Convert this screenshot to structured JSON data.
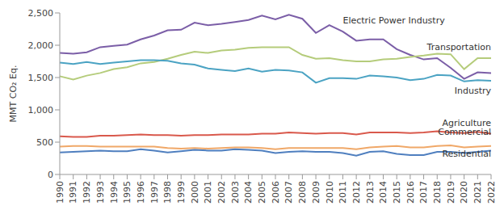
{
  "chart_data": {
    "type": "line",
    "y_label": "MMT CO₂ Eq.",
    "categories": [
      "1990",
      "1991",
      "1992",
      "1993",
      "1994",
      "1995",
      "1996",
      "1997",
      "1998",
      "1999",
      "2000",
      "2001",
      "2002",
      "2003",
      "2004",
      "2005",
      "2006",
      "2007",
      "2008",
      "2009",
      "2010",
      "2011",
      "2012",
      "2013",
      "2014",
      "2015",
      "2016",
      "2017",
      "2018",
      "2019",
      "2020",
      "2021",
      "2022"
    ],
    "ylim": [
      0,
      2500
    ],
    "yticks": [
      0,
      500,
      {
        "value": 1000,
        "label": "1,000"
      },
      {
        "value": 1500,
        "label": "1,500"
      },
      {
        "value": 2000,
        "label": "2,000"
      },
      {
        "value": 2500,
        "label": "2,500"
      }
    ],
    "grid": false,
    "series": [
      {
        "name": "Electric Power Industry",
        "color": "#7b5ea7",
        "values": [
          1880,
          1870,
          1890,
          1970,
          1990,
          2010,
          2090,
          2150,
          2230,
          2240,
          2350,
          2310,
          2330,
          2360,
          2390,
          2460,
          2400,
          2470,
          2410,
          2190,
          2310,
          2210,
          2070,
          2090,
          2090,
          1940,
          1850,
          1780,
          1800,
          1650,
          1480,
          1580,
          1570
        ]
      },
      {
        "name": "Transportation",
        "color": "#b5cc7b",
        "values": [
          1520,
          1470,
          1530,
          1570,
          1630,
          1660,
          1720,
          1740,
          1790,
          1850,
          1900,
          1880,
          1920,
          1930,
          1960,
          1970,
          1970,
          1970,
          1850,
          1790,
          1800,
          1770,
          1750,
          1750,
          1780,
          1790,
          1820,
          1840,
          1870,
          1860,
          1630,
          1800,
          1800
        ]
      },
      {
        "name": "Industry",
        "color": "#4ba3c3",
        "values": [
          1730,
          1710,
          1740,
          1710,
          1730,
          1750,
          1770,
          1770,
          1760,
          1720,
          1700,
          1640,
          1620,
          1600,
          1640,
          1590,
          1620,
          1610,
          1580,
          1420,
          1490,
          1490,
          1480,
          1530,
          1520,
          1500,
          1460,
          1480,
          1540,
          1530,
          1440,
          1460,
          1450
        ]
      },
      {
        "name": "Agriculture",
        "color": "#d9594c",
        "values": [
          590,
          580,
          580,
          600,
          600,
          610,
          620,
          610,
          610,
          600,
          610,
          610,
          620,
          620,
          620,
          630,
          630,
          650,
          640,
          630,
          640,
          640,
          620,
          650,
          650,
          650,
          640,
          650,
          670,
          650,
          640,
          660,
          630
        ]
      },
      {
        "name": "Commercial",
        "color": "#f0a868",
        "values": [
          430,
          440,
          440,
          430,
          430,
          430,
          430,
          430,
          410,
          400,
          410,
          400,
          410,
          420,
          420,
          410,
          390,
          410,
          410,
          410,
          410,
          410,
          390,
          420,
          430,
          440,
          420,
          420,
          440,
          450,
          420,
          430,
          440
        ]
      },
      {
        "name": "Residential",
        "color": "#4f7fbf",
        "values": [
          340,
          350,
          360,
          370,
          360,
          360,
          390,
          370,
          340,
          360,
          380,
          370,
          370,
          390,
          380,
          370,
          330,
          350,
          360,
          350,
          350,
          330,
          290,
          350,
          360,
          320,
          300,
          300,
          350,
          350,
          330,
          350,
          370
        ]
      }
    ]
  }
}
